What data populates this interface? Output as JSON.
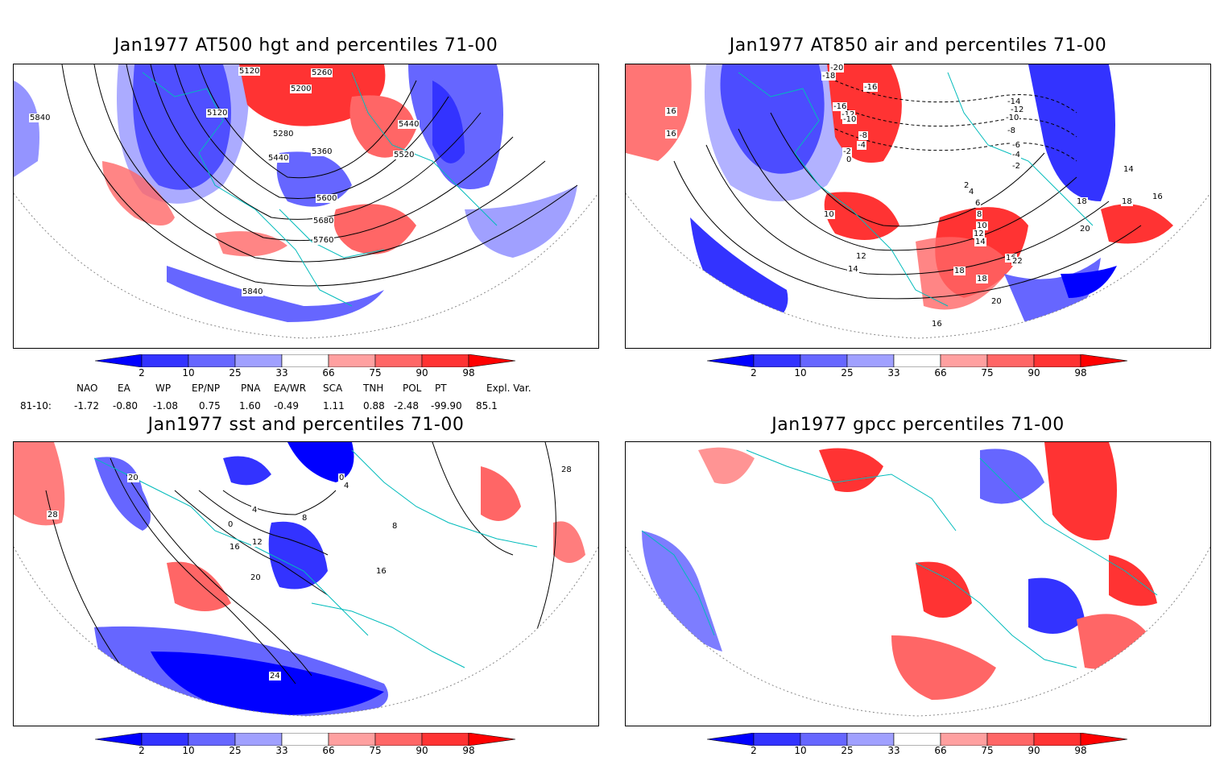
{
  "panels": [
    {
      "title": "Jan1977 AT500 hgt and percentiles 71-00",
      "contour_labels": [
        "5120",
        "5200",
        "5260",
        "5120",
        "5280",
        "5360",
        "5440",
        "5440",
        "5520",
        "5600",
        "5680",
        "5760",
        "5840",
        "5840"
      ]
    },
    {
      "title": "Jan1977 AT850 air and percentiles 71-00",
      "contour_labels": [
        "-20",
        "-18",
        "-16",
        "-16",
        "-12",
        "-10",
        "-8",
        "-4",
        "-2",
        "0",
        "2",
        "4",
        "6",
        "8",
        "10",
        "10",
        "12",
        "14",
        "16",
        "18",
        "20",
        "22",
        "-14",
        "-12",
        "-10",
        "-8",
        "-6",
        "-4",
        "-2",
        "16",
        "16",
        "14",
        "16",
        "18",
        "18",
        "20",
        "12",
        "14",
        "18",
        "16"
      ]
    },
    {
      "title": "Jan1977 sst and percentiles 71-00",
      "contour_labels": [
        "20",
        "28",
        "0",
        "4",
        "8",
        "12",
        "16",
        "20",
        "24",
        "28",
        "8",
        "16",
        "4",
        "0"
      ]
    },
    {
      "title": "Jan1977 gpcc percentiles 71-00",
      "contour_labels": []
    }
  ],
  "colorbar": {
    "labels": [
      "2",
      "10",
      "25",
      "33",
      "66",
      "75",
      "90",
      "98"
    ],
    "colors": [
      "#0000ff",
      "#3333ff",
      "#6666ff",
      "#a0a0ff",
      "#ffffff",
      "#ffa0a0",
      "#ff6666",
      "#ff3333",
      "#ff0000"
    ]
  },
  "indices": {
    "headers": [
      "NAO",
      "EA",
      "WP",
      "EP/NP",
      "PNA",
      "EA/WR",
      "SCA",
      "TNH",
      "POL",
      "PT",
      "Expl. Var."
    ],
    "row_label": "81-10:",
    "values": [
      "-1.72",
      "-0.80",
      "-1.08",
      "0.75",
      "1.60",
      "-0.49",
      "1.11",
      "0.88",
      "-2.48",
      "-99.90",
      "85.1"
    ]
  }
}
